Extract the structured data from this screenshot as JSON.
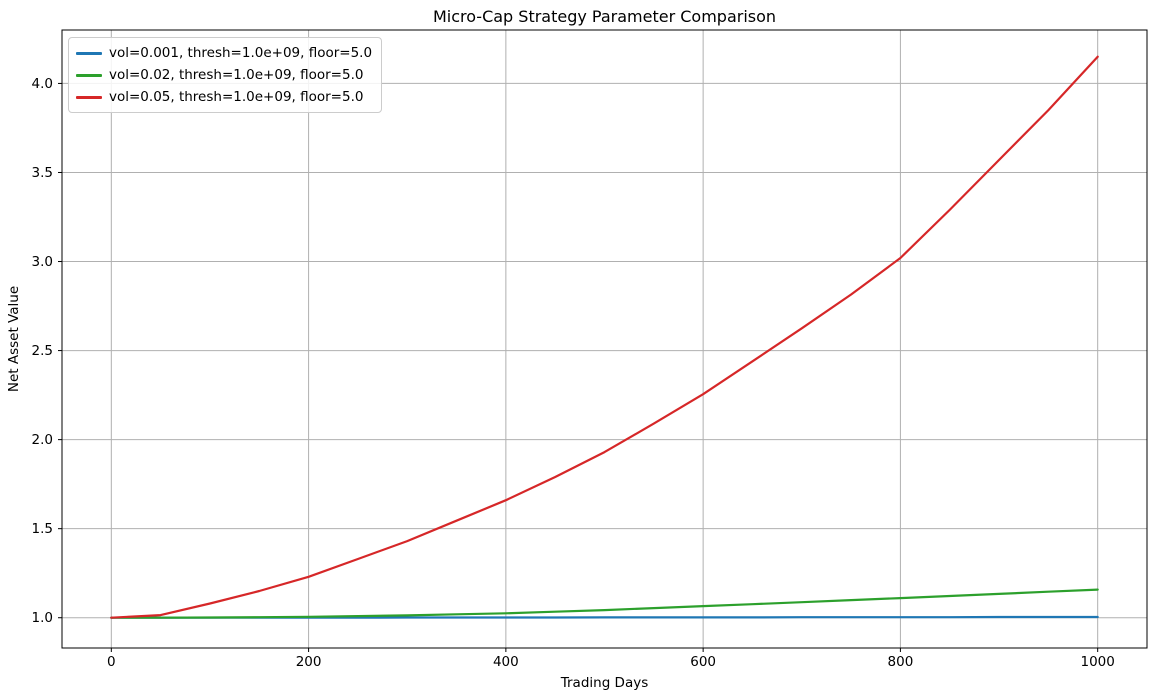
{
  "chart_data": {
    "type": "line",
    "title": "Micro-Cap Strategy Parameter Comparison",
    "xlabel": "Trading Days",
    "ylabel": "Net Asset Value",
    "xlim": [
      -50,
      1050
    ],
    "ylim": [
      0.83,
      4.3
    ],
    "xticks": [
      0,
      200,
      400,
      600,
      800,
      1000
    ],
    "xtick_labels": [
      "0",
      "200",
      "400",
      "600",
      "800",
      "1000"
    ],
    "yticks": [
      1.0,
      1.5,
      2.0,
      2.5,
      3.0,
      3.5,
      4.0
    ],
    "ytick_labels": [
      "1.0",
      "1.5",
      "2.0",
      "2.5",
      "3.0",
      "3.5",
      "4.0"
    ],
    "grid": true,
    "legend_position": "upper left",
    "x": [
      0,
      50,
      100,
      150,
      200,
      250,
      300,
      350,
      400,
      450,
      500,
      550,
      600,
      650,
      700,
      750,
      800,
      850,
      900,
      950,
      1000
    ],
    "series": [
      {
        "name": "vol=0.001, thresh=1.0e+09, floor=5.0",
        "color": "#1f77b4",
        "values": [
          1.0,
          1.0,
          1.0,
          1.0,
          1.0,
          1.0,
          1.001,
          1.001,
          1.001,
          1.001,
          1.002,
          1.002,
          1.002,
          1.002,
          1.003,
          1.003,
          1.003,
          1.003,
          1.004,
          1.004,
          1.004
        ]
      },
      {
        "name": "vol=0.02, thresh=1.0e+09, floor=5.0",
        "color": "#2ca02c",
        "values": [
          1.0,
          1.0,
          1.001,
          1.003,
          1.005,
          1.009,
          1.013,
          1.019,
          1.025,
          1.034,
          1.043,
          1.054,
          1.065,
          1.076,
          1.087,
          1.099,
          1.11,
          1.122,
          1.134,
          1.146,
          1.158
        ]
      },
      {
        "name": "vol=0.05, thresh=1.0e+09, floor=5.0",
        "color": "#d62728",
        "values": [
          1.0,
          1.015,
          1.08,
          1.15,
          1.23,
          1.33,
          1.43,
          1.545,
          1.66,
          1.79,
          1.93,
          2.09,
          2.255,
          2.44,
          2.625,
          2.815,
          3.02,
          3.29,
          3.57,
          3.85,
          4.15
        ]
      }
    ],
    "colors": {
      "grid": "#b0b0b0",
      "spine": "#000000",
      "tick": "#000000",
      "text": "#000000",
      "background": "#ffffff"
    }
  }
}
